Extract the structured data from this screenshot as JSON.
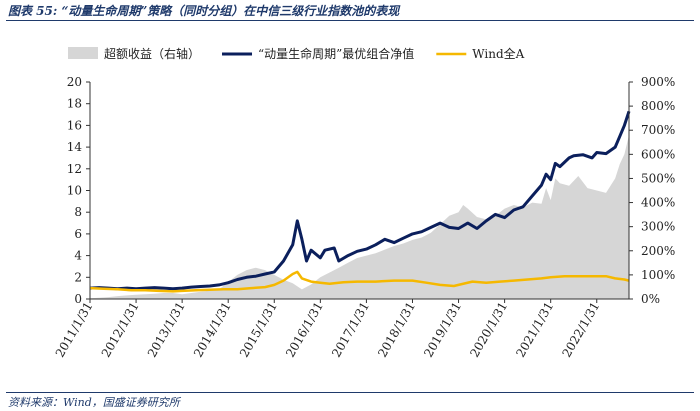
{
  "title": "图表 55: “动量生命周期”策略（同时分组）在中信三级行业指数池的表现",
  "source": "资料来源：Wind，国盛证券研究所",
  "colors": {
    "excess_fill": "#d6d6d6",
    "nav_line": "#0b1f5c",
    "wind_line": "#f5b800",
    "title": "#1f3a6b"
  },
  "chart_data": {
    "type": "line",
    "legend_position": "top",
    "grid": false,
    "x_ticks": [
      "2011/1/31",
      "2012/1/31",
      "2013/1/31",
      "2014/1/31",
      "2015/1/31",
      "2016/1/31",
      "2017/1/31",
      "2018/1/31",
      "2019/1/31",
      "2020/1/31",
      "2021/1/31",
      "2022/1/31"
    ],
    "x_range": [
      2011.0,
      2022.7
    ],
    "y_left": {
      "range": [
        0,
        20
      ],
      "ticks": [
        "0",
        "2",
        "4",
        "6",
        "8",
        "10",
        "12",
        "14",
        "16",
        "18",
        "20"
      ]
    },
    "y_right": {
      "range": [
        0,
        900
      ],
      "ticks": [
        "0%",
        "100%",
        "200%",
        "300%",
        "400%",
        "500%",
        "600%",
        "700%",
        "800%",
        "900%"
      ]
    },
    "series": [
      {
        "name": "超额收益（右轴）",
        "type": "area",
        "axis": "right",
        "points": [
          [
            2011.0,
            3
          ],
          [
            2011.2,
            5
          ],
          [
            2011.4,
            8
          ],
          [
            2011.6,
            12
          ],
          [
            2011.8,
            15
          ],
          [
            2012.0,
            18
          ],
          [
            2012.2,
            20
          ],
          [
            2012.4,
            22
          ],
          [
            2012.6,
            25
          ],
          [
            2012.8,
            25
          ],
          [
            2013.0,
            20
          ],
          [
            2013.2,
            25
          ],
          [
            2013.4,
            30
          ],
          [
            2013.6,
            35
          ],
          [
            2013.8,
            40
          ],
          [
            2014.0,
            70
          ],
          [
            2014.2,
            100
          ],
          [
            2014.4,
            120
          ],
          [
            2014.6,
            130
          ],
          [
            2014.8,
            120
          ],
          [
            2015.0,
            100
          ],
          [
            2015.2,
            80
          ],
          [
            2015.4,
            65
          ],
          [
            2015.6,
            40
          ],
          [
            2015.8,
            60
          ],
          [
            2016.0,
            90
          ],
          [
            2016.2,
            110
          ],
          [
            2016.4,
            130
          ],
          [
            2016.6,
            150
          ],
          [
            2016.8,
            170
          ],
          [
            2017.0,
            180
          ],
          [
            2017.2,
            190
          ],
          [
            2017.4,
            205
          ],
          [
            2017.6,
            220
          ],
          [
            2017.8,
            230
          ],
          [
            2018.0,
            245
          ],
          [
            2018.2,
            255
          ],
          [
            2018.4,
            275
          ],
          [
            2018.6,
            310
          ],
          [
            2018.8,
            345
          ],
          [
            2019.0,
            360
          ],
          [
            2019.1,
            390
          ],
          [
            2019.2,
            375
          ],
          [
            2019.4,
            340
          ],
          [
            2019.6,
            330
          ],
          [
            2019.8,
            345
          ],
          [
            2020.0,
            375
          ],
          [
            2020.2,
            390
          ],
          [
            2020.4,
            380
          ],
          [
            2020.6,
            400
          ],
          [
            2020.8,
            395
          ],
          [
            2020.9,
            460
          ],
          [
            2021.0,
            410
          ],
          [
            2021.1,
            500
          ],
          [
            2021.2,
            480
          ],
          [
            2021.4,
            470
          ],
          [
            2021.6,
            510
          ],
          [
            2021.8,
            460
          ],
          [
            2022.0,
            450
          ],
          [
            2022.2,
            440
          ],
          [
            2022.4,
            500
          ],
          [
            2022.5,
            560
          ],
          [
            2022.6,
            600
          ],
          [
            2022.7,
            680
          ]
        ]
      },
      {
        "name": "“动量生命周期”最优组合净值",
        "type": "line",
        "axis": "left",
        "points": [
          [
            2011.0,
            1.0
          ],
          [
            2011.2,
            1.05
          ],
          [
            2011.4,
            1.0
          ],
          [
            2011.6,
            0.95
          ],
          [
            2011.8,
            1.0
          ],
          [
            2012.0,
            0.95
          ],
          [
            2012.2,
            1.0
          ],
          [
            2012.4,
            1.05
          ],
          [
            2012.6,
            1.0
          ],
          [
            2012.8,
            0.95
          ],
          [
            2013.0,
            1.0
          ],
          [
            2013.2,
            1.1
          ],
          [
            2013.4,
            1.15
          ],
          [
            2013.6,
            1.2
          ],
          [
            2013.8,
            1.3
          ],
          [
            2014.0,
            1.5
          ],
          [
            2014.2,
            1.8
          ],
          [
            2014.4,
            2.0
          ],
          [
            2014.6,
            2.1
          ],
          [
            2014.8,
            2.3
          ],
          [
            2015.0,
            2.5
          ],
          [
            2015.2,
            3.5
          ],
          [
            2015.4,
            5.0
          ],
          [
            2015.5,
            7.2
          ],
          [
            2015.6,
            5.5
          ],
          [
            2015.7,
            3.5
          ],
          [
            2015.8,
            4.5
          ],
          [
            2016.0,
            3.8
          ],
          [
            2016.1,
            4.5
          ],
          [
            2016.3,
            4.7
          ],
          [
            2016.4,
            3.5
          ],
          [
            2016.6,
            4.0
          ],
          [
            2016.8,
            4.4
          ],
          [
            2017.0,
            4.6
          ],
          [
            2017.2,
            5.0
          ],
          [
            2017.4,
            5.5
          ],
          [
            2017.6,
            5.2
          ],
          [
            2017.8,
            5.6
          ],
          [
            2018.0,
            6.0
          ],
          [
            2018.2,
            6.2
          ],
          [
            2018.4,
            6.6
          ],
          [
            2018.6,
            7.0
          ],
          [
            2018.8,
            6.6
          ],
          [
            2019.0,
            6.5
          ],
          [
            2019.2,
            7.0
          ],
          [
            2019.4,
            6.5
          ],
          [
            2019.6,
            7.2
          ],
          [
            2019.8,
            7.8
          ],
          [
            2020.0,
            7.5
          ],
          [
            2020.2,
            8.2
          ],
          [
            2020.4,
            8.5
          ],
          [
            2020.6,
            9.5
          ],
          [
            2020.8,
            10.5
          ],
          [
            2020.9,
            11.5
          ],
          [
            2021.0,
            11.0
          ],
          [
            2021.1,
            12.5
          ],
          [
            2021.2,
            12.2
          ],
          [
            2021.4,
            13.0
          ],
          [
            2021.5,
            13.2
          ],
          [
            2021.7,
            13.3
          ],
          [
            2021.9,
            13.0
          ],
          [
            2022.0,
            13.5
          ],
          [
            2022.2,
            13.4
          ],
          [
            2022.4,
            14.0
          ],
          [
            2022.5,
            15.0
          ],
          [
            2022.6,
            16.0
          ],
          [
            2022.7,
            17.3
          ]
        ]
      },
      {
        "name": "Wind全A",
        "type": "line",
        "axis": "left",
        "points": [
          [
            2011.0,
            1.0
          ],
          [
            2011.3,
            0.95
          ],
          [
            2011.6,
            0.9
          ],
          [
            2011.9,
            0.8
          ],
          [
            2012.2,
            0.8
          ],
          [
            2012.5,
            0.75
          ],
          [
            2012.8,
            0.7
          ],
          [
            2013.0,
            0.75
          ],
          [
            2013.3,
            0.8
          ],
          [
            2013.6,
            0.85
          ],
          [
            2013.9,
            0.9
          ],
          [
            2014.2,
            0.9
          ],
          [
            2014.5,
            1.0
          ],
          [
            2014.8,
            1.1
          ],
          [
            2015.0,
            1.3
          ],
          [
            2015.2,
            1.7
          ],
          [
            2015.4,
            2.3
          ],
          [
            2015.5,
            2.5
          ],
          [
            2015.6,
            1.9
          ],
          [
            2015.8,
            1.6
          ],
          [
            2016.0,
            1.5
          ],
          [
            2016.2,
            1.4
          ],
          [
            2016.5,
            1.55
          ],
          [
            2016.8,
            1.6
          ],
          [
            2017.2,
            1.6
          ],
          [
            2017.6,
            1.7
          ],
          [
            2018.0,
            1.7
          ],
          [
            2018.3,
            1.5
          ],
          [
            2018.6,
            1.3
          ],
          [
            2018.9,
            1.2
          ],
          [
            2019.0,
            1.3
          ],
          [
            2019.3,
            1.6
          ],
          [
            2019.6,
            1.5
          ],
          [
            2019.9,
            1.6
          ],
          [
            2020.2,
            1.7
          ],
          [
            2020.5,
            1.8
          ],
          [
            2020.8,
            1.9
          ],
          [
            2021.0,
            2.0
          ],
          [
            2021.3,
            2.1
          ],
          [
            2021.6,
            2.1
          ],
          [
            2021.9,
            2.1
          ],
          [
            2022.2,
            2.1
          ],
          [
            2022.4,
            1.9
          ],
          [
            2022.6,
            1.8
          ],
          [
            2022.7,
            1.7
          ]
        ]
      }
    ]
  }
}
